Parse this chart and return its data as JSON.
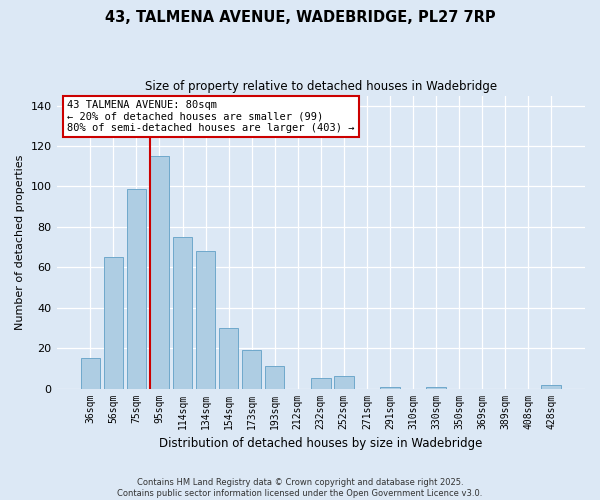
{
  "title": "43, TALMENA AVENUE, WADEBRIDGE, PL27 7RP",
  "subtitle": "Size of property relative to detached houses in Wadebridge",
  "xlabel": "Distribution of detached houses by size in Wadebridge",
  "ylabel": "Number of detached properties",
  "bar_labels": [
    "36sqm",
    "56sqm",
    "75sqm",
    "95sqm",
    "114sqm",
    "134sqm",
    "154sqm",
    "173sqm",
    "193sqm",
    "212sqm",
    "232sqm",
    "252sqm",
    "271sqm",
    "291sqm",
    "310sqm",
    "330sqm",
    "350sqm",
    "369sqm",
    "389sqm",
    "408sqm",
    "428sqm"
  ],
  "bar_values": [
    15,
    65,
    99,
    115,
    75,
    68,
    30,
    19,
    11,
    0,
    5,
    6,
    0,
    1,
    0,
    1,
    0,
    0,
    0,
    0,
    2
  ],
  "bar_color": "#aecde3",
  "bar_edge_color": "#6fa8cc",
  "vline_color": "#cc0000",
  "annotation_title": "43 TALMENA AVENUE: 80sqm",
  "annotation_line1": "← 20% of detached houses are smaller (99)",
  "annotation_line2": "80% of semi-detached houses are larger (403) →",
  "annotation_box_color": "#ffffff",
  "annotation_box_edge": "#cc0000",
  "ylim": [
    0,
    145
  ],
  "yticks": [
    0,
    20,
    40,
    60,
    80,
    100,
    120,
    140
  ],
  "background_color": "#dce8f5",
  "plot_bg_color": "#dce8f5",
  "footer_line1": "Contains HM Land Registry data © Crown copyright and database right 2025.",
  "footer_line2": "Contains public sector information licensed under the Open Government Licence v3.0."
}
